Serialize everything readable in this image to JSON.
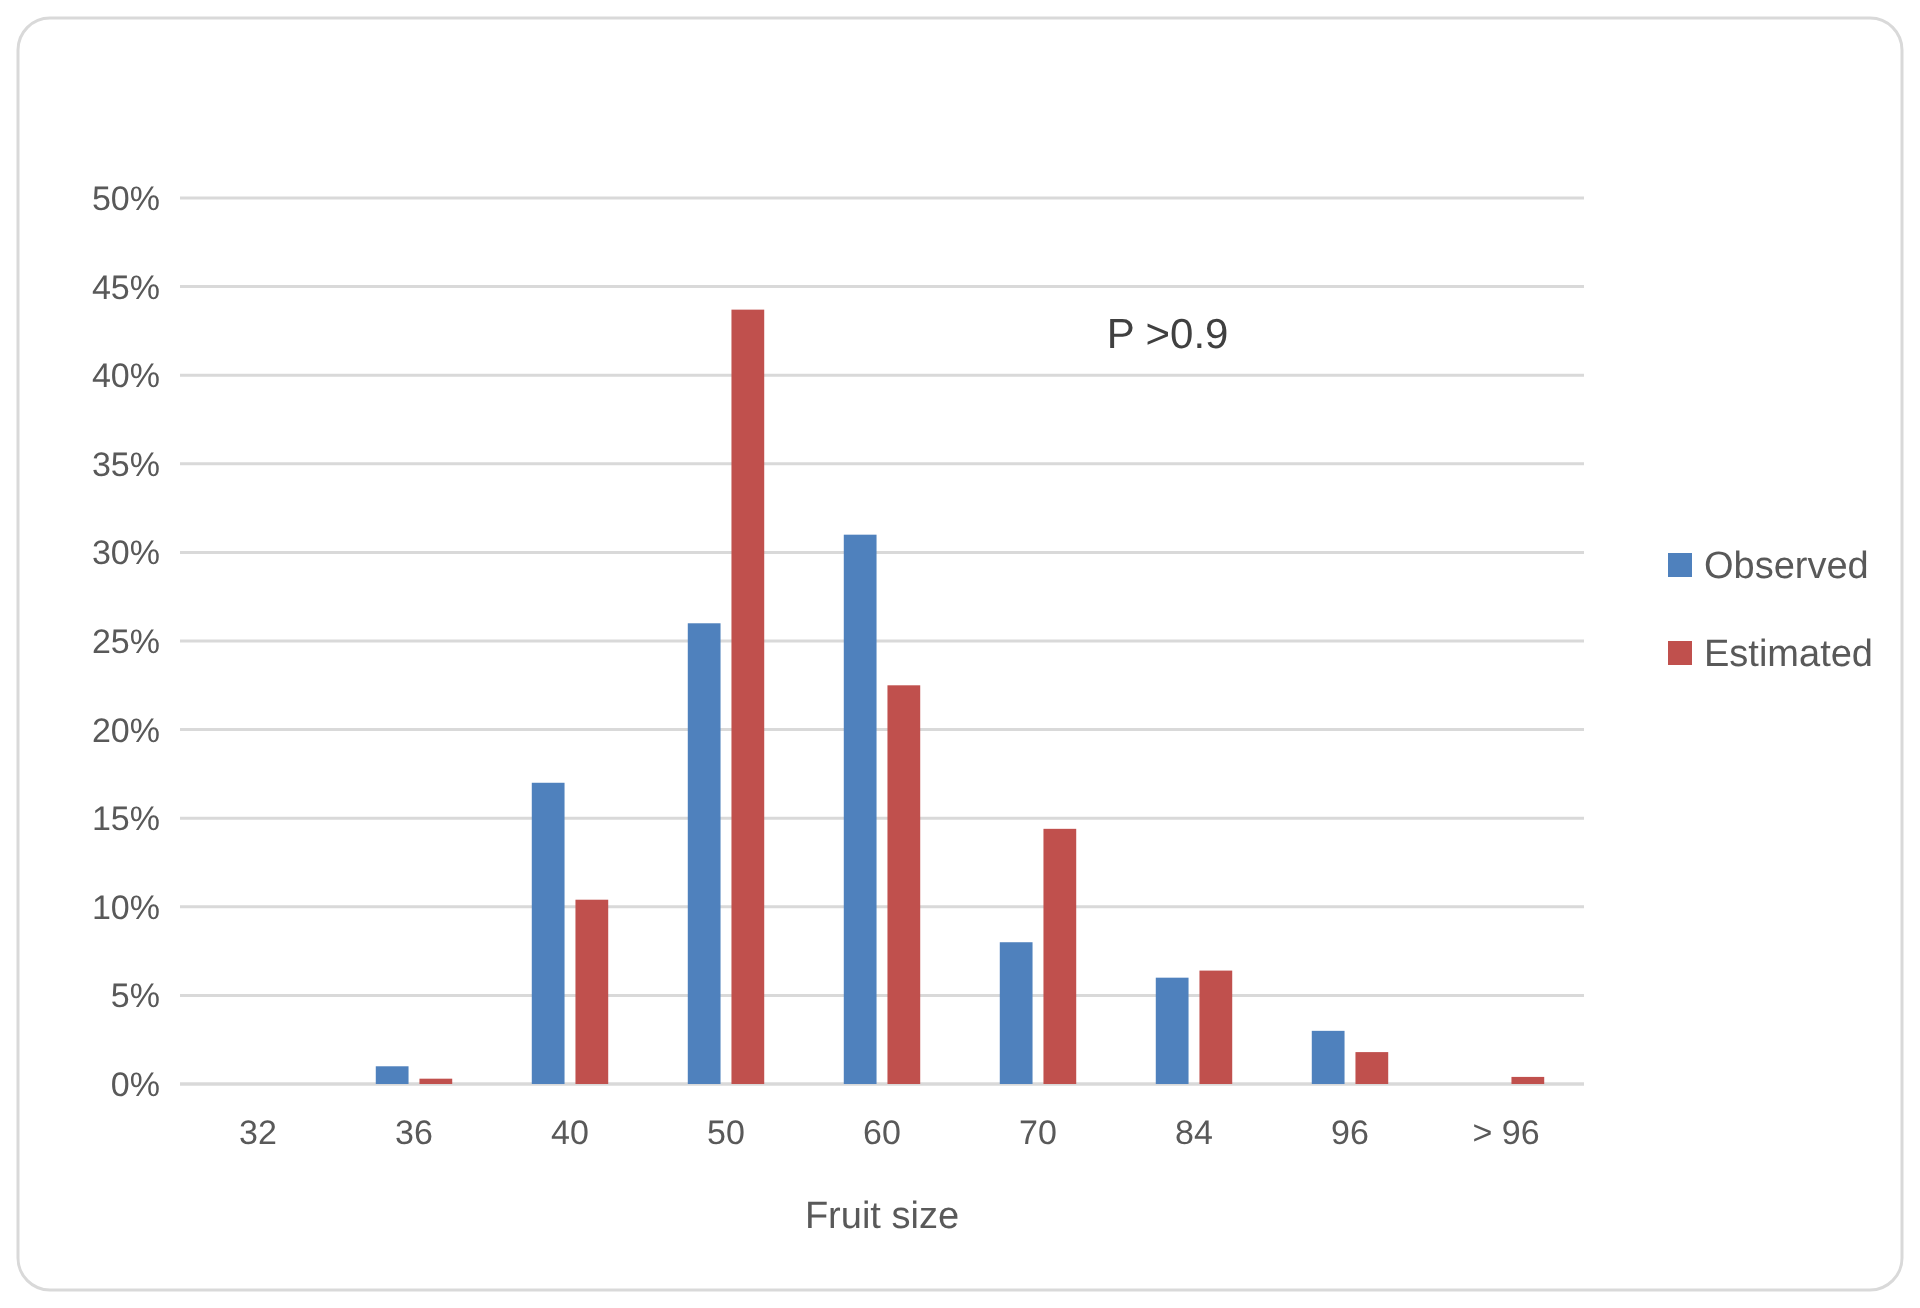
{
  "chart_data": {
    "type": "bar",
    "xlabel": "Fruit size",
    "categories": [
      "32",
      "36",
      "40",
      "50",
      "60",
      "70",
      "84",
      "96",
      "> 96"
    ],
    "series": [
      {
        "name": "Observed",
        "color": "#4f81bd",
        "values": [
          0,
          1,
          17,
          26,
          31,
          8,
          6,
          3,
          0
        ]
      },
      {
        "name": "Estimated",
        "color": "#c0504d",
        "values": [
          0,
          0.3,
          10.4,
          43.7,
          22.5,
          14.4,
          6.4,
          1.8,
          0.4
        ]
      }
    ],
    "ylim": [
      0,
      50
    ],
    "yticks": [
      {
        "value": 0,
        "label": "0%"
      },
      {
        "value": 5,
        "label": "5%"
      },
      {
        "value": 10,
        "label": "10%"
      },
      {
        "value": 15,
        "label": "15%"
      },
      {
        "value": 20,
        "label": "20%"
      },
      {
        "value": 25,
        "label": "25%"
      },
      {
        "value": 30,
        "label": "30%"
      },
      {
        "value": 35,
        "label": "35%"
      },
      {
        "value": 40,
        "label": "40%"
      },
      {
        "value": 45,
        "label": "45%"
      },
      {
        "value": 50,
        "label": "50%"
      }
    ],
    "grid": "y",
    "legend": "right",
    "annotations": [
      "P >0.9"
    ]
  }
}
